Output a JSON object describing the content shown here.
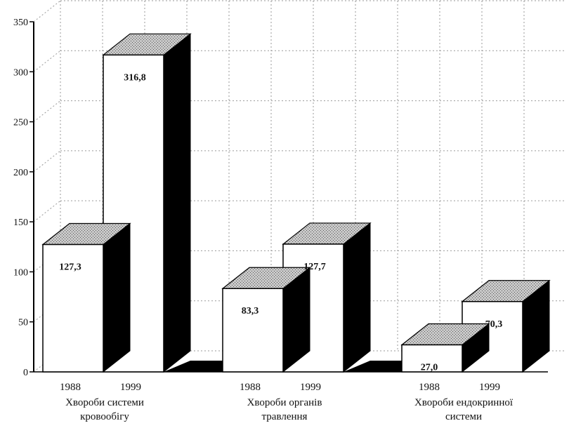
{
  "chart_data": {
    "type": "bar",
    "style": "3d-grouped",
    "series_labels": [
      "1988",
      "1999"
    ],
    "categories": [
      {
        "label_lines": [
          "Хвороби системи",
          "кровообігу"
        ],
        "values": [
          127.3,
          316.8
        ],
        "value_labels": [
          "127,3",
          "316,8"
        ]
      },
      {
        "label_lines": [
          "Хвороби  органів",
          "травлення"
        ],
        "values": [
          83.3,
          127.7
        ],
        "value_labels": [
          "83,3",
          "127,7"
        ]
      },
      {
        "label_lines": [
          "Хвороби ендокринної",
          "системи"
        ],
        "values": [
          27.0,
          70.3
        ],
        "value_labels": [
          "27,0",
          "70,3"
        ]
      }
    ],
    "ylim": [
      0,
      350
    ],
    "yticks": [
      0,
      50,
      100,
      150,
      200,
      250,
      300,
      350
    ],
    "ytick_labels": [
      "0",
      "50",
      "100",
      "150",
      "200",
      "250",
      "300",
      "350"
    ],
    "grid": true,
    "legend": "none",
    "colors": {
      "front": "#ffffff",
      "top": "#bdbdbd",
      "side": "#000000",
      "grid": "#9a9a9a",
      "outline": "#000000"
    }
  }
}
